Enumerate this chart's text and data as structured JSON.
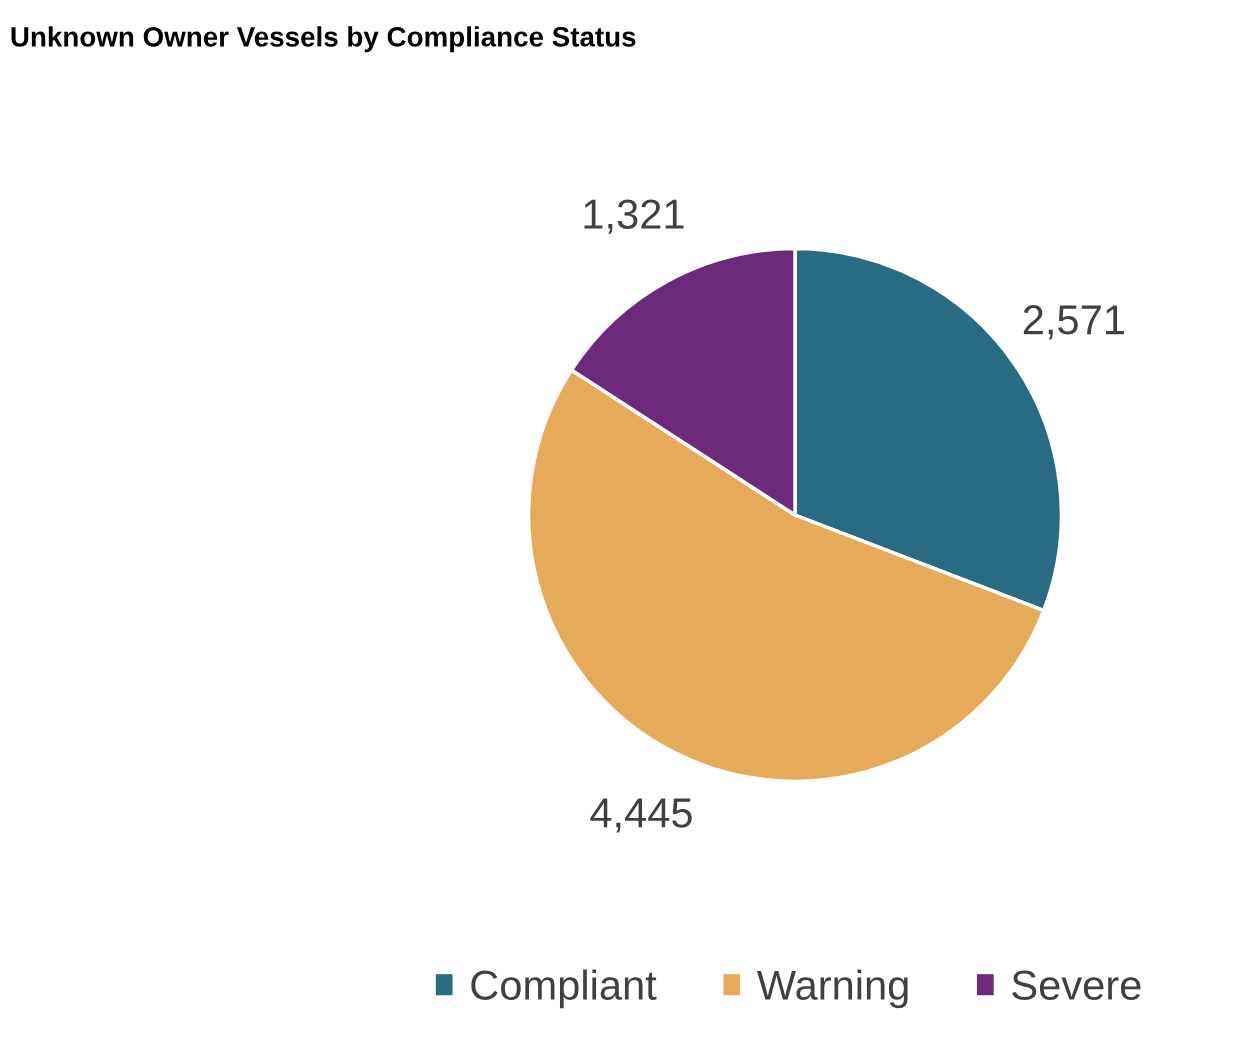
{
  "chart_data": {
    "type": "pie",
    "title": "Unknown Owner Vessels by Compliance Status",
    "categories": [
      "Compliant",
      "Warning",
      "Severe"
    ],
    "values": [
      2571,
      4445,
      1321
    ],
    "colors": [
      "#2a6b84",
      "#e5aa5a",
      "#6e2a7a"
    ],
    "value_labels": [
      "2,571",
      "4,445",
      "1,321"
    ],
    "legend": "bottom"
  }
}
